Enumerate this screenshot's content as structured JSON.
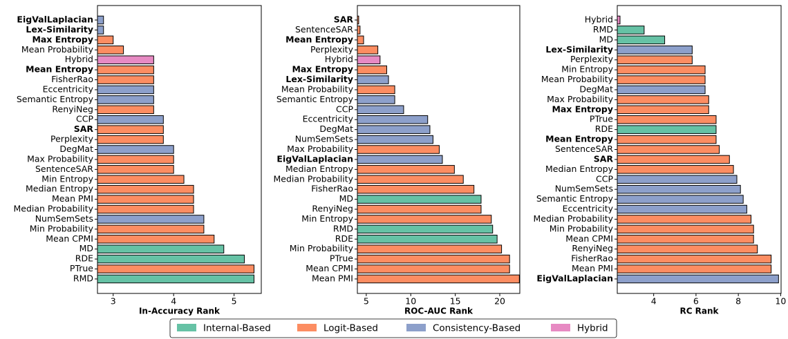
{
  "chart_data": [
    {
      "type": "barh",
      "xlabel": "In-Accuracy Rank",
      "categories": [
        "EigValLaplacian",
        "Lex-Similarity",
        "Max Entropy",
        "Mean Probability",
        "Hybrid",
        "Mean Entropy",
        "FisherRao",
        "Eccentricity",
        "Semantic Entropy",
        "RenyiNeg",
        "CCP",
        "SAR",
        "Perplexity",
        "DegMat",
        "Max Probability",
        "SentenceSAR",
        "Min Entropy",
        "Median Entropy",
        "Mean PMI",
        "Median Probability",
        "NumSemSets",
        "Min Probability",
        "Mean CPMI",
        "MD",
        "RDE",
        "PTrue",
        "RMD"
      ],
      "values": [
        2.84,
        2.84,
        3.0,
        3.17,
        3.67,
        3.67,
        3.67,
        3.67,
        3.67,
        3.67,
        3.83,
        3.83,
        3.83,
        4.0,
        4.0,
        4.0,
        4.17,
        4.33,
        4.33,
        4.33,
        4.5,
        4.5,
        4.67,
        4.83,
        5.17,
        5.33,
        5.33
      ],
      "colors": [
        "#8da0cb",
        "#8da0cb",
        "#fc8d62",
        "#fc8d62",
        "#e78ac3",
        "#fc8d62",
        "#fc8d62",
        "#8da0cb",
        "#8da0cb",
        "#fc8d62",
        "#8da0cb",
        "#fc8d62",
        "#fc8d62",
        "#8da0cb",
        "#fc8d62",
        "#fc8d62",
        "#fc8d62",
        "#fc8d62",
        "#fc8d62",
        "#fc8d62",
        "#8da0cb",
        "#fc8d62",
        "#fc8d62",
        "#66c2a5",
        "#66c2a5",
        "#fc8d62",
        "#66c2a5"
      ],
      "bold": [
        true,
        true,
        true,
        false,
        false,
        true,
        false,
        false,
        false,
        false,
        false,
        true,
        false,
        false,
        false,
        false,
        false,
        false,
        false,
        false,
        false,
        false,
        false,
        false,
        false,
        false,
        false
      ],
      "xlim": [
        2.74,
        5.45
      ],
      "xticks": [
        3,
        4,
        5
      ]
    },
    {
      "type": "barh",
      "xlabel": "ROC-AUC Rank",
      "categories": [
        "SAR",
        "SentenceSAR",
        "Mean Entropy",
        "Perplexity",
        "Hybrid",
        "Max Entropy",
        "Lex-Similarity",
        "Mean Probability",
        "Semantic Entropy",
        "CCP",
        "Eccentricity",
        "DegMat",
        "NumSemSets",
        "Max Probability",
        "EigValLaplacian",
        "Median Entropy",
        "Median Probability",
        "FisherRao",
        "MD",
        "RenyiNeg",
        "Min Entropy",
        "RMD",
        "RDE",
        "Min Probability",
        "PTrue",
        "Mean CPMI",
        "Mean PMI"
      ],
      "values": [
        4.15,
        4.3,
        4.7,
        6.3,
        6.55,
        7.3,
        7.5,
        8.2,
        8.2,
        9.2,
        11.9,
        12.15,
        12.5,
        13.2,
        13.55,
        14.9,
        15.9,
        17.1,
        17.9,
        17.9,
        19.05,
        19.2,
        19.7,
        20.2,
        21.1,
        21.1,
        22.2
      ],
      "colors": [
        "#fc8d62",
        "#fc8d62",
        "#fc8d62",
        "#fc8d62",
        "#e78ac3",
        "#fc8d62",
        "#8da0cb",
        "#fc8d62",
        "#8da0cb",
        "#8da0cb",
        "#8da0cb",
        "#8da0cb",
        "#8da0cb",
        "#fc8d62",
        "#8da0cb",
        "#fc8d62",
        "#fc8d62",
        "#fc8d62",
        "#66c2a5",
        "#fc8d62",
        "#fc8d62",
        "#66c2a5",
        "#66c2a5",
        "#fc8d62",
        "#fc8d62",
        "#fc8d62",
        "#fc8d62"
      ],
      "bold": [
        true,
        false,
        true,
        false,
        false,
        true,
        true,
        false,
        false,
        false,
        false,
        false,
        false,
        false,
        true,
        false,
        false,
        false,
        false,
        false,
        false,
        false,
        false,
        false,
        false,
        false,
        false
      ],
      "xlim": [
        4.0,
        22.25
      ],
      "xticks": [
        5,
        10,
        15,
        20
      ]
    },
    {
      "type": "barh",
      "xlabel": "RC Rank",
      "categories": [
        "Hybrid",
        "RMD",
        "MD",
        "Lex-Similarity",
        "Perplexity",
        "Min Entropy",
        "Mean Probability",
        "DegMat",
        "Max Probability",
        "Max Entropy",
        "PTrue",
        "RDE",
        "Mean Entropy",
        "SentenceSAR",
        "SAR",
        "Median Entropy",
        "CCP",
        "NumSemSets",
        "Semantic Entropy",
        "Eccentricity",
        "Median Probability",
        "Min Probability",
        "Mean CPMI",
        "RenyiNeg",
        "FisherRao",
        "Mean PMI",
        "EigValLaplacian"
      ],
      "values": [
        2.41,
        3.55,
        4.52,
        5.82,
        5.82,
        6.43,
        6.43,
        6.43,
        6.6,
        6.6,
        6.95,
        6.95,
        6.95,
        7.1,
        7.58,
        7.77,
        7.93,
        8.1,
        8.23,
        8.4,
        8.6,
        8.72,
        8.72,
        8.9,
        9.55,
        9.55,
        9.9
      ],
      "colors": [
        "#e78ac3",
        "#66c2a5",
        "#66c2a5",
        "#8da0cb",
        "#fc8d62",
        "#fc8d62",
        "#fc8d62",
        "#8da0cb",
        "#fc8d62",
        "#fc8d62",
        "#fc8d62",
        "#66c2a5",
        "#fc8d62",
        "#fc8d62",
        "#fc8d62",
        "#fc8d62",
        "#8da0cb",
        "#8da0cb",
        "#8da0cb",
        "#8da0cb",
        "#fc8d62",
        "#fc8d62",
        "#fc8d62",
        "#fc8d62",
        "#fc8d62",
        "#fc8d62",
        "#8da0cb"
      ],
      "bold": [
        false,
        false,
        false,
        true,
        false,
        false,
        false,
        false,
        false,
        true,
        false,
        false,
        true,
        false,
        true,
        false,
        false,
        false,
        false,
        false,
        false,
        false,
        false,
        false,
        false,
        false,
        true
      ],
      "xlim": [
        2.28,
        10.02
      ],
      "xticks": [
        4,
        6,
        8,
        10
      ]
    }
  ],
  "legend": {
    "items": [
      {
        "name": "Internal-Based",
        "color": "#66c2a5"
      },
      {
        "name": "Logit-Based",
        "color": "#fc8d62"
      },
      {
        "name": "Consistency-Based",
        "color": "#8da0cb"
      },
      {
        "name": "Hybrid",
        "color": "#e78ac3"
      }
    ]
  }
}
